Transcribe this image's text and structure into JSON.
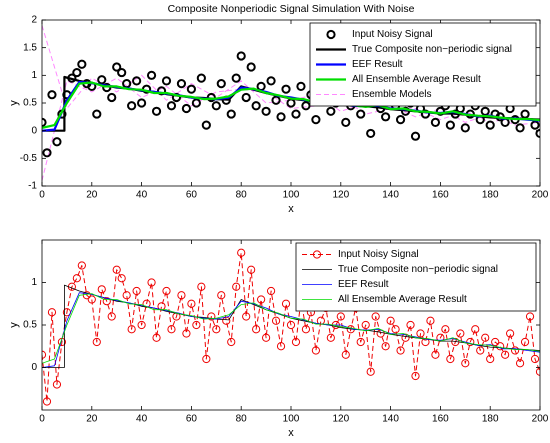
{
  "chart_data": [
    {
      "type": "line",
      "title": "Composite Nonperiodic Signal Simulation With Noise",
      "xlabel": "x",
      "ylabel": "y",
      "xlim": [
        0,
        200
      ],
      "xticks": [
        0,
        20,
        40,
        60,
        80,
        100,
        120,
        140,
        160,
        180,
        200
      ],
      "ylim": [
        -1,
        2
      ],
      "yticks": [
        -1,
        -0.5,
        0,
        0.5,
        1,
        1.5,
        2
      ],
      "legend": "upper right",
      "series": [
        {
          "name": "Input Noisy Signal",
          "color": "#000000",
          "line": "none",
          "marker": "circle",
          "width": 2,
          "x": [
            0,
            2,
            4,
            6,
            8,
            10,
            12,
            14,
            16,
            18,
            20,
            22,
            24,
            26,
            28,
            30,
            32,
            34,
            36,
            38,
            40,
            42,
            44,
            46,
            48,
            50,
            52,
            54,
            56,
            58,
            60,
            62,
            64,
            66,
            68,
            70,
            72,
            74,
            76,
            78,
            80,
            82,
            84,
            86,
            88,
            90,
            92,
            94,
            96,
            98,
            100,
            102,
            104,
            106,
            108,
            110,
            112,
            114,
            116,
            118,
            120,
            122,
            124,
            126,
            128,
            130,
            132,
            134,
            136,
            138,
            140,
            142,
            144,
            146,
            148,
            150,
            152,
            154,
            156,
            158,
            160,
            162,
            164,
            166,
            168,
            170,
            172,
            174,
            176,
            178,
            180,
            182,
            184,
            186,
            188,
            190,
            192,
            194,
            196,
            198,
            200
          ],
          "values": [
            0.15,
            -0.4,
            0.65,
            -0.2,
            0.3,
            0.65,
            0.95,
            1.05,
            1.2,
            0.85,
            0.8,
            0.3,
            0.92,
            0.78,
            0.6,
            1.15,
            1.05,
            0.85,
            0.45,
            0.9,
            0.5,
            0.75,
            1.0,
            0.35,
            0.72,
            0.9,
            0.45,
            0.6,
            0.85,
            0.4,
            0.75,
            0.5,
            0.95,
            0.1,
            0.6,
            0.45,
            0.85,
            0.55,
            0.3,
            0.95,
            1.35,
            0.6,
            1.15,
            0.45,
            0.8,
            0.35,
            0.9,
            0.55,
            0.25,
            0.75,
            0.5,
            0.3,
            0.8,
            0.45,
            0.65,
            0.2,
            0.55,
            0.7,
            0.35,
            0.5,
            0.6,
            0.15,
            0.45,
            0.7,
            0.3,
            0.5,
            -0.05,
            0.6,
            0.4,
            0.25,
            0.55,
            0.45,
            0.2,
            0.35,
            0.5,
            -0.1,
            0.4,
            0.3,
            0.55,
            0.15,
            0.35,
            0.45,
            0.1,
            0.3,
            0.4,
            0.05,
            0.3,
            0.45,
            0.2,
            0.35,
            0.1,
            0.3,
            0.25,
            0.15,
            0.4,
            0.2,
            0.05,
            0.3,
            0.6,
            0.1,
            -0.05
          ]
        },
        {
          "name": "True Composite non−periodic signal",
          "color": "#000000",
          "line": "solid",
          "width": 2.2,
          "x": [
            0,
            9,
            9,
            15,
            20,
            25,
            30,
            35,
            40,
            45,
            50,
            55,
            60,
            65,
            70,
            75,
            80,
            85,
            90,
            95,
            100,
            105,
            110,
            115,
            120,
            125,
            130,
            135,
            140,
            145,
            150,
            155,
            160,
            165,
            170,
            175,
            180,
            185,
            190,
            195,
            200
          ],
          "values": [
            0,
            0,
            0.97,
            0.9,
            0.86,
            0.82,
            0.78,
            0.76,
            0.72,
            0.7,
            0.66,
            0.63,
            0.6,
            0.59,
            0.57,
            0.56,
            0.8,
            0.74,
            0.68,
            0.63,
            0.58,
            0.55,
            0.52,
            0.5,
            0.47,
            0.45,
            0.44,
            0.42,
            0.39,
            0.37,
            0.35,
            0.33,
            0.31,
            0.31,
            0.29,
            0.26,
            0.24,
            0.23,
            0.22,
            0.21,
            0.2
          ]
        },
        {
          "name": "EEF Result",
          "color": "#0000ff",
          "line": "solid",
          "width": 2.2,
          "x": [
            0,
            5,
            10,
            15,
            20,
            25,
            30,
            35,
            40,
            45,
            50,
            55,
            60,
            65,
            70,
            75,
            80,
            85,
            90,
            95,
            100,
            105,
            110,
            115,
            120,
            125,
            130,
            135,
            140,
            145,
            150,
            155,
            160,
            165,
            170,
            175,
            180,
            185,
            190,
            195,
            200
          ],
          "values": [
            0,
            0.02,
            0.55,
            0.88,
            0.86,
            0.82,
            0.79,
            0.76,
            0.73,
            0.7,
            0.67,
            0.64,
            0.6,
            0.58,
            0.57,
            0.6,
            0.78,
            0.75,
            0.7,
            0.63,
            0.6,
            0.56,
            0.52,
            0.5,
            0.5,
            0.45,
            0.44,
            0.45,
            0.4,
            0.39,
            0.36,
            0.33,
            0.32,
            0.34,
            0.3,
            0.26,
            0.27,
            0.22,
            0.22,
            0.2,
            0.18
          ]
        },
        {
          "name": "All Ensemble Average Result",
          "color": "#00dd00",
          "line": "solid",
          "width": 2.2,
          "x": [
            0,
            5,
            10,
            15,
            20,
            25,
            30,
            35,
            40,
            45,
            50,
            55,
            60,
            65,
            70,
            75,
            80,
            85,
            90,
            95,
            100,
            105,
            110,
            115,
            120,
            125,
            130,
            135,
            140,
            145,
            150,
            155,
            160,
            165,
            170,
            175,
            180,
            185,
            190,
            195,
            200
          ],
          "values": [
            0.05,
            0.1,
            0.5,
            0.85,
            0.87,
            0.8,
            0.8,
            0.75,
            0.74,
            0.68,
            0.68,
            0.63,
            0.61,
            0.57,
            0.58,
            0.62,
            0.74,
            0.76,
            0.68,
            0.64,
            0.58,
            0.57,
            0.51,
            0.51,
            0.48,
            0.46,
            0.43,
            0.46,
            0.39,
            0.4,
            0.35,
            0.34,
            0.31,
            0.35,
            0.29,
            0.27,
            0.26,
            0.23,
            0.21,
            0.21,
            0.19
          ]
        },
        {
          "name": "Ensemble Models",
          "color": "#ff88ff",
          "line": "dashed",
          "width": 1,
          "x": [
            0,
            10,
            20,
            30,
            40,
            50,
            60,
            70,
            80,
            90,
            100,
            110,
            120,
            130,
            140,
            150,
            160,
            170,
            180,
            190,
            200
          ],
          "members": [
            [
              1.9,
              0.4,
              0.95,
              0.7,
              1.0,
              0.55,
              0.85,
              0.6,
              0.9,
              0.5,
              0.55,
              0.65,
              0.35,
              0.5,
              0.45,
              0.25,
              0.4,
              0.15,
              0.3,
              0.1,
              0.15
            ],
            [
              -0.9,
              0.9,
              0.7,
              0.95,
              0.6,
              0.8,
              0.45,
              0.7,
              0.75,
              0.7,
              0.4,
              0.45,
              0.6,
              0.3,
              0.4,
              0.4,
              0.2,
              0.35,
              0.15,
              0.25,
              0.2
            ]
          ]
        }
      ]
    },
    {
      "type": "line",
      "xlabel": "x",
      "ylabel": "y",
      "xlim": [
        0,
        200
      ],
      "xticks": [
        0,
        20,
        40,
        60,
        80,
        100,
        120,
        140,
        160,
        180,
        200
      ],
      "ylim": [
        -0.5,
        1.5
      ],
      "yticks": [
        0,
        0.5,
        1
      ],
      "legend": "upper right",
      "series": [
        {
          "name": "Input Noisy Signal",
          "color": "#ee0000",
          "line": "dashed",
          "marker": "circle",
          "width": 1,
          "x": [
            0,
            2,
            4,
            6,
            8,
            10,
            12,
            14,
            16,
            18,
            20,
            22,
            24,
            26,
            28,
            30,
            32,
            34,
            36,
            38,
            40,
            42,
            44,
            46,
            48,
            50,
            52,
            54,
            56,
            58,
            60,
            62,
            64,
            66,
            68,
            70,
            72,
            74,
            76,
            78,
            80,
            82,
            84,
            86,
            88,
            90,
            92,
            94,
            96,
            98,
            100,
            102,
            104,
            106,
            108,
            110,
            112,
            114,
            116,
            118,
            120,
            122,
            124,
            126,
            128,
            130,
            132,
            134,
            136,
            138,
            140,
            142,
            144,
            146,
            148,
            150,
            152,
            154,
            156,
            158,
            160,
            162,
            164,
            166,
            168,
            170,
            172,
            174,
            176,
            178,
            180,
            182,
            184,
            186,
            188,
            190,
            192,
            194,
            196,
            198,
            200
          ],
          "values": [
            0.15,
            -0.4,
            0.65,
            -0.2,
            0.3,
            0.65,
            0.95,
            1.05,
            1.2,
            0.85,
            0.8,
            0.3,
            0.92,
            0.78,
            0.6,
            1.15,
            1.05,
            0.85,
            0.45,
            0.9,
            0.5,
            0.75,
            1.0,
            0.35,
            0.72,
            0.9,
            0.45,
            0.6,
            0.85,
            0.4,
            0.75,
            0.5,
            0.95,
            0.1,
            0.6,
            0.45,
            0.85,
            0.55,
            0.3,
            0.95,
            1.35,
            0.6,
            1.15,
            0.45,
            0.8,
            0.35,
            0.9,
            0.55,
            0.25,
            0.75,
            0.5,
            0.3,
            0.8,
            0.45,
            0.65,
            0.2,
            0.55,
            0.7,
            0.35,
            0.5,
            0.6,
            0.15,
            0.45,
            0.7,
            0.3,
            0.5,
            -0.05,
            0.6,
            0.4,
            0.25,
            0.55,
            0.45,
            0.2,
            0.35,
            0.5,
            -0.1,
            0.4,
            0.3,
            0.55,
            0.15,
            0.35,
            0.45,
            0.1,
            0.3,
            0.4,
            0.05,
            0.3,
            0.45,
            0.2,
            0.35,
            0.1,
            0.3,
            0.25,
            0.15,
            0.4,
            0.2,
            0.05,
            0.3,
            0.6,
            0.1,
            -0.05
          ]
        },
        {
          "name": "True Composite non−periodic signal",
          "color": "#000000",
          "line": "solid",
          "width": 0.8,
          "x": [
            0,
            9,
            9,
            15,
            20,
            25,
            30,
            35,
            40,
            45,
            50,
            55,
            60,
            65,
            70,
            75,
            80,
            85,
            90,
            95,
            100,
            105,
            110,
            115,
            120,
            125,
            130,
            135,
            140,
            145,
            150,
            155,
            160,
            165,
            170,
            175,
            180,
            185,
            190,
            195,
            200
          ],
          "values": [
            0,
            0,
            0.97,
            0.9,
            0.86,
            0.82,
            0.78,
            0.76,
            0.72,
            0.7,
            0.66,
            0.63,
            0.6,
            0.59,
            0.57,
            0.56,
            0.8,
            0.74,
            0.68,
            0.63,
            0.58,
            0.55,
            0.52,
            0.5,
            0.47,
            0.45,
            0.44,
            0.42,
            0.39,
            0.37,
            0.35,
            0.33,
            0.31,
            0.31,
            0.29,
            0.26,
            0.24,
            0.23,
            0.22,
            0.21,
            0.2
          ]
        },
        {
          "name": "EEF Result",
          "color": "#0000ff",
          "line": "solid",
          "width": 0.8,
          "x": [
            0,
            5,
            10,
            15,
            20,
            25,
            30,
            35,
            40,
            45,
            50,
            55,
            60,
            65,
            70,
            75,
            80,
            85,
            90,
            95,
            100,
            105,
            110,
            115,
            120,
            125,
            130,
            135,
            140,
            145,
            150,
            155,
            160,
            165,
            170,
            175,
            180,
            185,
            190,
            195,
            200
          ],
          "values": [
            0,
            0.02,
            0.55,
            0.88,
            0.86,
            0.82,
            0.79,
            0.76,
            0.73,
            0.7,
            0.67,
            0.64,
            0.6,
            0.58,
            0.57,
            0.6,
            0.78,
            0.75,
            0.7,
            0.63,
            0.6,
            0.56,
            0.52,
            0.5,
            0.5,
            0.45,
            0.44,
            0.45,
            0.4,
            0.39,
            0.36,
            0.33,
            0.32,
            0.34,
            0.3,
            0.26,
            0.27,
            0.22,
            0.22,
            0.2,
            0.18
          ]
        },
        {
          "name": "All Ensemble Average Result",
          "color": "#00dd00",
          "line": "solid",
          "width": 0.8,
          "x": [
            0,
            5,
            10,
            15,
            20,
            25,
            30,
            35,
            40,
            45,
            50,
            55,
            60,
            65,
            70,
            75,
            80,
            85,
            90,
            95,
            100,
            105,
            110,
            115,
            120,
            125,
            130,
            135,
            140,
            145,
            150,
            155,
            160,
            165,
            170,
            175,
            180,
            185,
            190,
            195,
            200
          ],
          "values": [
            0.05,
            0.1,
            0.5,
            0.85,
            0.87,
            0.8,
            0.8,
            0.75,
            0.74,
            0.68,
            0.68,
            0.63,
            0.61,
            0.57,
            0.58,
            0.62,
            0.74,
            0.76,
            0.68,
            0.64,
            0.58,
            0.57,
            0.51,
            0.51,
            0.48,
            0.46,
            0.43,
            0.46,
            0.39,
            0.4,
            0.35,
            0.34,
            0.31,
            0.35,
            0.29,
            0.27,
            0.26,
            0.23,
            0.21,
            0.21,
            0.19
          ]
        }
      ]
    }
  ]
}
